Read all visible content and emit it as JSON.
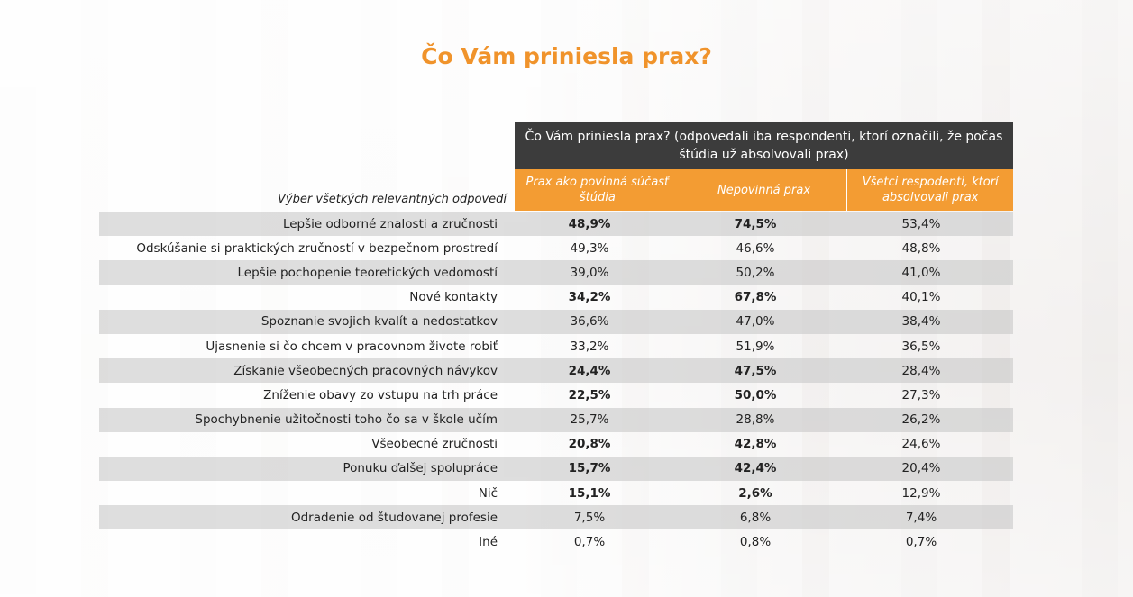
{
  "title": "Čo Vám priniesla prax?",
  "table": {
    "group_header": "Čo Vám priniesla prax? (odpovedali iba respondenti, ktorí označili, že počas štúdia už absolvovali prax)",
    "row_header": "Výber všetkých relevantných odpovedí",
    "columns": [
      "Prax ako povinná súčasť štúdia",
      "Nepovinná prax",
      "Všetci respodenti, ktorí absolvovali prax"
    ],
    "rows": [
      {
        "label": "Lepšie odborné znalosti a zručnosti",
        "v1": "48,9%",
        "v2": "74,5%",
        "v3": "53,4%",
        "bold": true
      },
      {
        "label": "Odskúšanie si praktických zručností v bezpečnom prostredí",
        "v1": "49,3%",
        "v2": "46,6%",
        "v3": "48,8%",
        "bold": false
      },
      {
        "label": "Lepšie pochopenie teoretických vedomostí",
        "v1": "39,0%",
        "v2": "50,2%",
        "v3": "41,0%",
        "bold": false
      },
      {
        "label": "Nové kontakty",
        "v1": "34,2%",
        "v2": "67,8%",
        "v3": "40,1%",
        "bold": true
      },
      {
        "label": "Spoznanie svojich kvalít a nedostatkov",
        "v1": "36,6%",
        "v2": "47,0%",
        "v3": "38,4%",
        "bold": false
      },
      {
        "label": "Ujasnenie si čo chcem v pracovnom živote robiť",
        "v1": "33,2%",
        "v2": "51,9%",
        "v3": "36,5%",
        "bold": false
      },
      {
        "label": "Získanie všeobecných pracovných návykov",
        "v1": "24,4%",
        "v2": "47,5%",
        "v3": "28,4%",
        "bold": true
      },
      {
        "label": "Zníženie obavy zo vstupu na trh práce",
        "v1": "22,5%",
        "v2": "50,0%",
        "v3": "27,3%",
        "bold": true
      },
      {
        "label": "Spochybnenie užitočnosti toho čo sa v škole učím",
        "v1": "25,7%",
        "v2": "28,8%",
        "v3": "26,2%",
        "bold": false
      },
      {
        "label": "Všeobecné zručnosti",
        "v1": "20,8%",
        "v2": "42,8%",
        "v3": "24,6%",
        "bold": true
      },
      {
        "label": "Ponuku ďalšej spolupráce",
        "v1": "15,7%",
        "v2": "42,4%",
        "v3": "20,4%",
        "bold": true
      },
      {
        "label": "Nič",
        "v1": "15,1%",
        "v2": "2,6%",
        "v3": "12,9%",
        "bold": true
      },
      {
        "label": "Odradenie od študovanej profesie",
        "v1": "7,5%",
        "v2": "6,8%",
        "v3": "7,4%",
        "bold": false
      },
      {
        "label": "Iné",
        "v1": "0,7%",
        "v2": "0,8%",
        "v3": "0,7%",
        "bold": false
      }
    ]
  },
  "colors": {
    "accent": "#f39c33",
    "title": "#f0932b",
    "header_dark": "#3c3c3c"
  }
}
